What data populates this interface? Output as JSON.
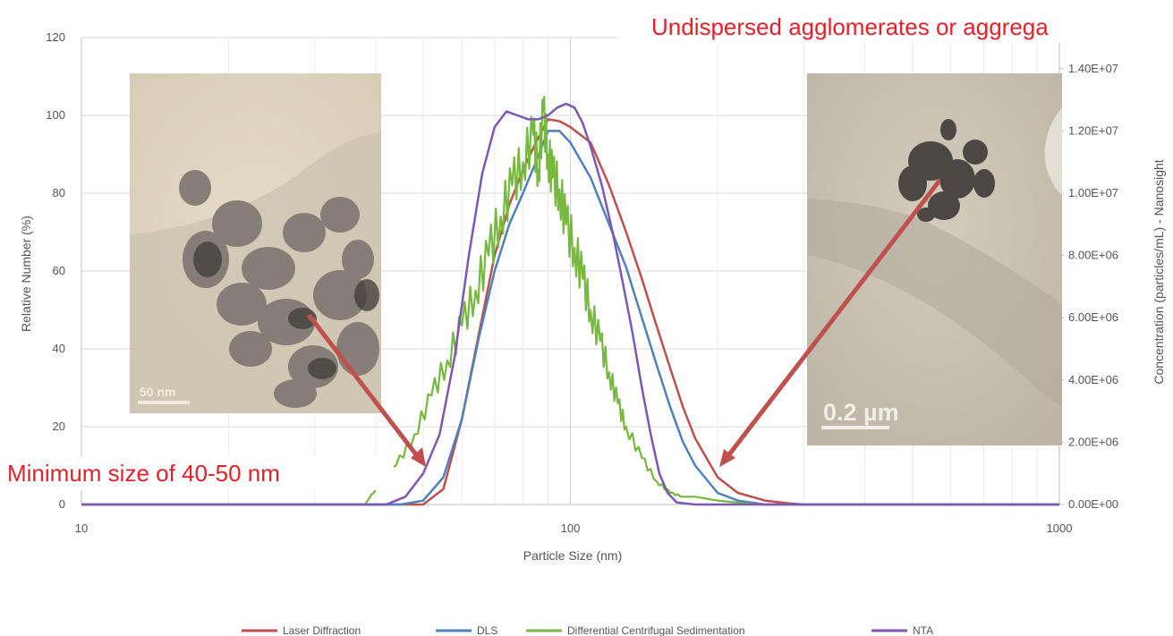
{
  "chart_data": {
    "type": "line",
    "title": "",
    "xlabel": "Particle Size (nm)",
    "ylabel": "Relative Number (%)",
    "y2label": "Concentration (particles/mL) - Nanosight",
    "xscale": "log",
    "xlim": [
      10,
      1000
    ],
    "ylim": [
      0,
      120
    ],
    "y2lim": [
      0,
      15000000
    ],
    "x_ticks": [
      10,
      100,
      1000
    ],
    "x_tick_labels": [
      "10",
      "100",
      "1000"
    ],
    "y_ticks": [
      0,
      20,
      40,
      60,
      80,
      100,
      120
    ],
    "y_tick_labels": [
      "0",
      "20",
      "40",
      "60",
      "80",
      "100",
      "120"
    ],
    "y2_ticks": [
      0,
      2000000,
      4000000,
      6000000,
      8000000,
      10000000,
      12000000,
      14000000
    ],
    "y2_tick_labels": [
      "0.00E+00",
      "2.00E+06",
      "4.00E+06",
      "6.00E+06",
      "8.00E+06",
      "1.00E+07",
      "1.20E+07",
      "1.40E+07"
    ],
    "grid": true,
    "legend_position": "bottom",
    "series": [
      {
        "name": "Laser Diffraction",
        "color": "#c0504d",
        "x": [
          10,
          50,
          55,
          60,
          65,
          70,
          75,
          80,
          85,
          90,
          95,
          100,
          110,
          120,
          130,
          140,
          150,
          160,
          170,
          180,
          200,
          220,
          250,
          280,
          300,
          1000
        ],
        "y": [
          0,
          0,
          4,
          22,
          44,
          64,
          77,
          86,
          93,
          99,
          98.5,
          97,
          93,
          82,
          70,
          58,
          46,
          35,
          25,
          17,
          7,
          3,
          1,
          0.3,
          0,
          0
        ]
      },
      {
        "name": "DLS",
        "color": "#4f81bd",
        "x": [
          10,
          45,
          50,
          55,
          60,
          65,
          70,
          75,
          80,
          85,
          90,
          95,
          100,
          110,
          120,
          130,
          140,
          150,
          160,
          170,
          180,
          200,
          220,
          250,
          1000
        ],
        "y": [
          0,
          0,
          1,
          7,
          22,
          43,
          60,
          72,
          80,
          88,
          96,
          96,
          93,
          84,
          72,
          61,
          48,
          36,
          25,
          16,
          10,
          3,
          1,
          0,
          0
        ]
      },
      {
        "name": "Differential Centrifugal Sedimentation",
        "color": "#77b83f",
        "x": [
          10,
          38,
          40,
          44,
          48,
          52,
          56,
          60,
          64,
          68,
          72,
          76,
          80,
          84,
          86,
          88,
          90,
          92,
          95,
          98,
          102,
          106,
          110,
          115,
          120,
          125,
          130,
          140,
          150,
          160,
          170,
          180,
          200,
          240,
          1000
        ],
        "y": [
          0,
          0,
          4,
          10,
          18,
          28,
          37,
          46,
          55,
          64,
          74,
          82,
          88,
          95,
          86,
          101,
          90,
          84,
          81,
          72,
          66,
          58,
          50,
          42,
          34,
          26,
          20,
          12,
          6,
          3,
          2,
          2,
          1,
          0,
          0
        ]
      },
      {
        "name": "NTA",
        "color": "#7e57b5",
        "x": [
          10,
          42,
          46,
          50,
          54,
          58,
          62,
          66,
          70,
          74,
          78,
          82,
          86,
          90,
          94,
          98,
          102,
          106,
          110,
          116,
          122,
          128,
          134,
          140,
          146,
          152,
          158,
          165,
          180,
          1000
        ],
        "y": [
          0,
          0,
          2,
          8,
          18,
          38,
          64,
          85,
          97,
          101,
          100,
          99,
          99,
          100,
          102,
          103,
          102,
          98,
          92,
          82,
          70,
          57,
          44,
          30,
          18,
          8,
          3,
          0.5,
          0,
          0
        ]
      }
    ],
    "annotations": [
      {
        "text": "Minimum size of 40-50 nm",
        "color": "#e8202a"
      },
      {
        "text": "Undispersed agglomerates or aggrega",
        "color": "#e8202a"
      }
    ],
    "insets": [
      {
        "label": "50 nm"
      },
      {
        "label": "0.2 µm"
      }
    ]
  }
}
